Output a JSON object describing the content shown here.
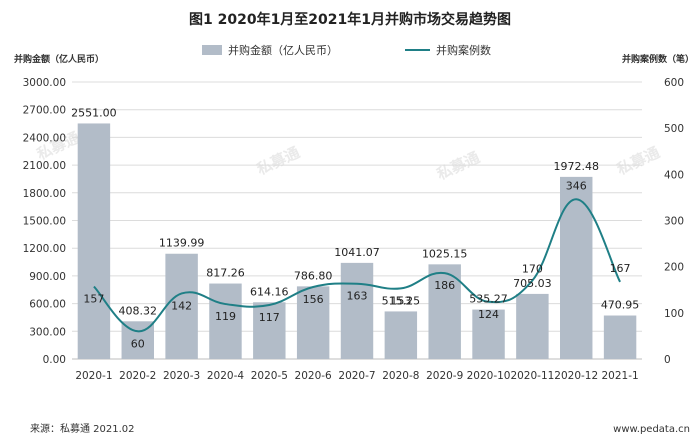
{
  "title": "图1  2020年1月至2021年1月并购市场交易趋势图",
  "left_axis_title": "并购金额（亿人民币）",
  "right_axis_title": "并购案例数（笔）",
  "legend": {
    "bar": "并购金额（亿人民币）",
    "line": "并购案例数"
  },
  "source": "来源：私募通 2021.02",
  "website": "www.pedata.cn",
  "watermark": "私募通",
  "colors": {
    "bar": "#b2bcc8",
    "line": "#1f7f86"
  },
  "chart_data": {
    "type": "bar+line",
    "categories": [
      "2020-1",
      "2020-2",
      "2020-3",
      "2020-4",
      "2020-5",
      "2020-6",
      "2020-7",
      "2020-8",
      "2020-9",
      "2020-10",
      "2020-11",
      "2020-12",
      "2021-1"
    ],
    "series": [
      {
        "name": "并购金额（亿人民币）",
        "type": "bar",
        "axis": "left",
        "values": [
          2551.0,
          408.32,
          1139.99,
          817.26,
          614.16,
          786.8,
          1041.07,
          515.25,
          1025.15,
          535.27,
          705.03,
          1972.48,
          470.95
        ],
        "labels": [
          "2551.00",
          "408.32",
          "1139.99",
          "817.26",
          "614.16",
          "786.80",
          "1041.07",
          "515.25",
          "1025.15",
          "535.27",
          "705.03",
          "1972.48",
          "470.95"
        ]
      },
      {
        "name": "并购案例数",
        "type": "line",
        "axis": "right",
        "values": [
          157,
          60,
          142,
          119,
          117,
          156,
          163,
          153,
          186,
          124,
          170,
          346,
          167
        ]
      }
    ],
    "left_ticks": [
      "3000.00",
      "2700.00",
      "2400.00",
      "2100.00",
      "1800.00",
      "1500.00",
      "1200.00",
      "900.00",
      "600.00",
      "300.00",
      "0.00"
    ],
    "right_ticks": [
      "600",
      "500",
      "400",
      "300",
      "200",
      "100",
      "0"
    ],
    "ylim_left": [
      0,
      3000
    ],
    "ylim_right": [
      0,
      600
    ],
    "grid": true,
    "legend_position": "top"
  }
}
